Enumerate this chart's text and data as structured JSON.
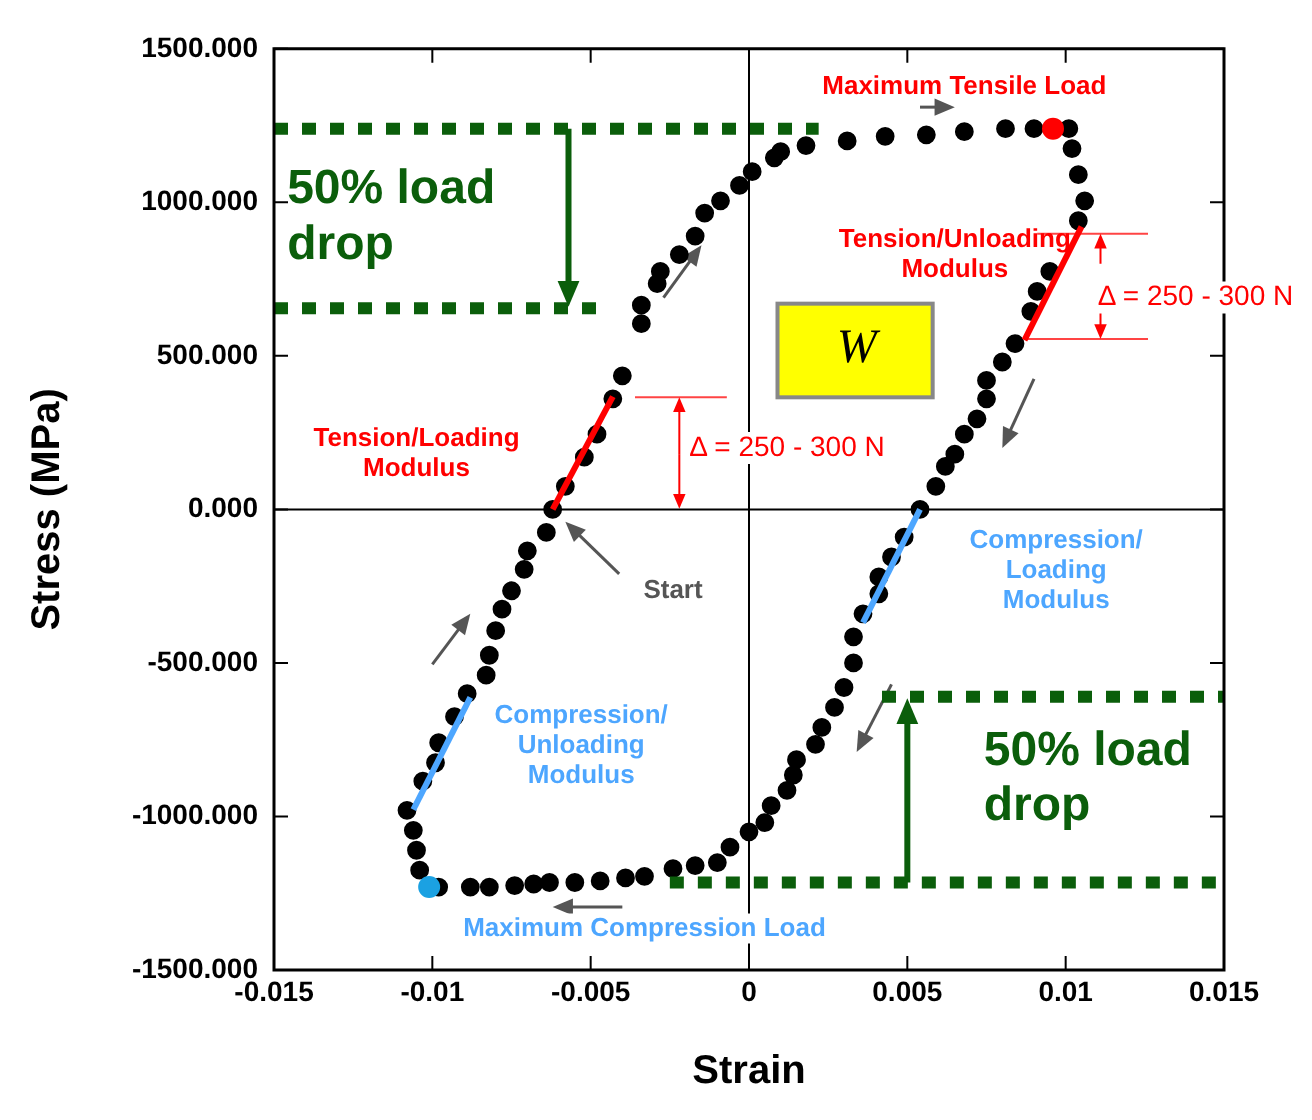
{
  "chart_data": {
    "type": "scatter",
    "xlabel": "Strain",
    "ylabel": "Stress (MPa)",
    "xlim": [
      -0.015,
      0.015
    ],
    "xticks": [
      -0.015,
      -0.01,
      -0.005,
      0,
      0.005,
      0.01,
      0.015
    ],
    "ylim": [
      -1500,
      1500
    ],
    "yticks": [
      {
        "value": -1500,
        "label": "-1500.000"
      },
      {
        "value": -1000,
        "label": "-1000.000"
      },
      {
        "value": -500,
        "label": "-500.000"
      },
      {
        "value": 0,
        "label": "0.000"
      },
      {
        "value": 500,
        "label": "500.000"
      },
      {
        "value": 1000,
        "label": "1000.000"
      },
      {
        "value": 1500,
        "label": "1500.000"
      }
    ],
    "grid": false,
    "legend": false,
    "marker": "circle",
    "series": [
      {
        "color": "#000000",
        "x": [
          -0.0062,
          -0.0058,
          -0.0052,
          -0.0048,
          -0.0043,
          -0.004,
          -0.0034,
          -0.0034,
          -0.0029,
          -0.0028,
          -0.0022,
          -0.0017,
          -0.0014,
          -0.0009,
          -0.0003,
          0.0001,
          0.0008,
          0.001,
          0.0018,
          0.0031,
          0.0043,
          0.0056,
          0.0068,
          0.0081,
          0.009,
          0.0101,
          0.0102,
          0.0104,
          0.0106,
          0.0104,
          0.0095,
          0.0091,
          0.0089,
          0.0084,
          0.008,
          0.0075,
          0.0075,
          0.0072,
          0.0068,
          0.0065,
          0.0062,
          0.0059,
          0.0054,
          0.0049,
          0.0045,
          0.0041,
          0.0041,
          0.0036,
          0.0033,
          0.0033,
          0.003,
          0.0027,
          0.0023,
          0.0021,
          0.0015,
          0.0014,
          0.0012,
          0.0007,
          0.0005,
          0.0,
          -0.0006,
          -0.001,
          -0.0017,
          -0.0024,
          -0.0033,
          -0.0039,
          -0.0047,
          -0.0055,
          -0.0063,
          -0.0068,
          -0.0074,
          -0.0082,
          -0.0088,
          -0.0098,
          -0.0104,
          -0.0105,
          -0.0106,
          -0.0108,
          -0.0103,
          -0.0099,
          -0.0098,
          -0.0093,
          -0.0089,
          -0.0083,
          -0.0082,
          -0.008,
          -0.0078,
          -0.0075,
          -0.0071,
          -0.007,
          -0.0064
        ],
        "values": [
          0,
          75,
          170,
          245,
          360,
          435,
          605,
          665,
          735,
          775,
          830,
          890,
          965,
          1005,
          1055,
          1100,
          1145,
          1165,
          1185,
          1200,
          1215,
          1220,
          1230,
          1240,
          1240,
          1240,
          1175,
          1090,
          1005,
          940,
          775,
          710,
          645,
          540,
          480,
          420,
          360,
          295,
          245,
          180,
          140,
          75,
          0,
          -90,
          -155,
          -220,
          -275,
          -340,
          -415,
          -500,
          -580,
          -645,
          -710,
          -765,
          -815,
          -865,
          -915,
          -965,
          -1020,
          -1050,
          -1100,
          -1150,
          -1160,
          -1170,
          -1195,
          -1200,
          -1210,
          -1215,
          -1215,
          -1220,
          -1225,
          -1230,
          -1230,
          -1230,
          -1175,
          -1110,
          -1045,
          -980,
          -885,
          -825,
          -760,
          -675,
          -600,
          -540,
          -475,
          -395,
          -325,
          -265,
          -195,
          -135,
          -75
        ]
      },
      {
        "color": "#ff0000",
        "x": [
          0.0096
        ],
        "values": [
          1240
        ]
      },
      {
        "color": "#1ba1e2",
        "x": [
          -0.0101
        ],
        "values": [
          -1230
        ]
      },
      {
        "type": "line",
        "color": "#ff0000",
        "marker": "none",
        "x": [
          -0.0062,
          -0.0043
        ],
        "values": [
          0,
          367
        ]
      },
      {
        "type": "line",
        "color": "#ff0000",
        "marker": "none",
        "x": [
          0.0105,
          0.0087
        ],
        "values": [
          921,
          551
        ]
      },
      {
        "type": "line",
        "color": "#4da6ff",
        "marker": "none",
        "x": [
          0.0054,
          0.0036
        ],
        "values": [
          0,
          -369
        ]
      },
      {
        "type": "line",
        "color": "#4da6ff",
        "marker": "none",
        "x": [
          -0.0106,
          -0.0088
        ],
        "values": [
          -978,
          -612
        ]
      },
      {
        "type": "line",
        "color": "#0b5e0b",
        "marker": "none",
        "line_style": "dashed",
        "x": [
          -0.015,
          0.0022
        ],
        "values": [
          1240,
          1240
        ]
      },
      {
        "type": "line",
        "color": "#0b5e0b",
        "marker": "none",
        "line_style": "dashed",
        "x": [
          -0.015,
          -0.0047
        ],
        "values": [
          655,
          655
        ]
      },
      {
        "type": "line",
        "color": "#0b5e0b",
        "marker": "none",
        "line_style": "dashed",
        "x": [
          0.0042,
          0.015
        ],
        "values": [
          -610,
          -610
        ]
      },
      {
        "type": "line",
        "color": "#0b5e0b",
        "marker": "none",
        "line_style": "dashed",
        "x": [
          -0.0025,
          0.015
        ],
        "values": [
          -1215,
          -1215
        ]
      }
    ],
    "annotations": [
      "Maximum Tensile Load",
      "Tension/Unloading\nModulus",
      "W",
      {
        "text": "Δ = 250 - 300 N",
        "x": 0.0087,
        "y": 551
      },
      "Tension/Loading\nModulus",
      {
        "text": "Δ = 250 - 300 N",
        "x": -0.0043,
        "y": 367
      },
      "Start",
      "Compression/\nLoading\nModulus",
      "Compression/\nUnloading\nModulus",
      "Maximum Compression Load",
      "50% load\ndrop",
      "50% load\ndrop"
    ]
  }
}
